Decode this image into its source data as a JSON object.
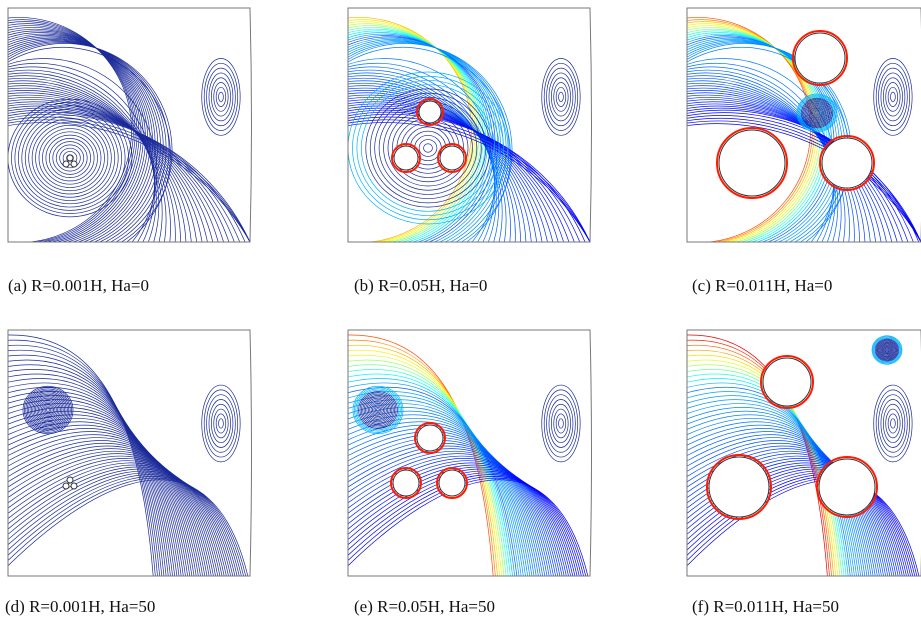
{
  "panels": [
    {
      "caption": "(a) R=0.001H, Ha=0"
    },
    {
      "caption": "(b) R=0.05H, Ha=0"
    },
    {
      "caption": "(c) R=0.011H, Ha=0"
    },
    {
      "caption": "(d) R=0.001H, Ha=50"
    },
    {
      "caption": "(e) R=0.05H, Ha=50"
    },
    {
      "caption": "(f) R=0.011H, Ha=50"
    }
  ]
}
